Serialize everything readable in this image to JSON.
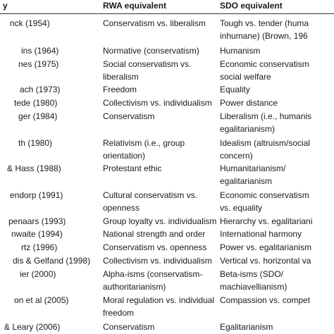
{
  "table": {
    "header": [
      "y",
      "RWA equivalent",
      "SDO equivalent"
    ],
    "rows": [
      [
        [
          "nck (1954)"
        ],
        [
          "Conservatism vs. liberalism"
        ],
        [
          "Tough vs. tender (huma",
          "inhumane) (Brown, 196"
        ]
      ],
      [
        [
          "ins (1964)"
        ],
        [
          "Normative (conservatism)"
        ],
        [
          "Humanism"
        ]
      ],
      [
        [
          "nes (1975)"
        ],
        [
          "Social conservatism vs.",
          "liberalism"
        ],
        [
          "Economic conservatism",
          "social welfare"
        ]
      ],
      [
        [
          "ach (1973)"
        ],
        [
          "Freedom"
        ],
        [
          "Equality"
        ]
      ],
      [
        [
          "tede (1980)"
        ],
        [
          "Collectivism vs. individualism"
        ],
        [
          "Power distance"
        ]
      ],
      [
        [
          "ger (1984)"
        ],
        [
          "Conservatism"
        ],
        [
          "Liberalism (i.e., humanis",
          "egalitarianism)"
        ]
      ],
      [
        [
          "th (1980)"
        ],
        [
          "Relativism (i.e., group",
          "orientation)"
        ],
        [
          "Idealism (altruism/social",
          "concern)"
        ]
      ],
      [
        [
          "& Hass (1988)"
        ],
        [
          "Protestant ethic"
        ],
        [
          "Humanitarianism/",
          "egalitarianism"
        ]
      ],
      [
        [
          "endorp (1991)"
        ],
        [
          "Cultural conservatism vs.",
          "openness"
        ],
        [
          "Economic conservatism",
          "vs. equality"
        ]
      ],
      [
        [
          "penaars (1993)"
        ],
        [
          "Group loyalty vs. individualism"
        ],
        [
          "Hierarchy vs. egalitariani"
        ]
      ],
      [
        [
          "nwaite (1994)"
        ],
        [
          "National strength  and order"
        ],
        [
          "International harmony"
        ]
      ],
      [
        [
          "rtz (1996)"
        ],
        [
          "Conservatism vs. openness"
        ],
        [
          "Power vs. egalitarianism"
        ]
      ],
      [
        [
          "dis & Gelfand (1998)"
        ],
        [
          "Collectivism vs. individualism"
        ],
        [
          "Vertical vs. horizontal va"
        ]
      ],
      [
        [
          "ier (2000)"
        ],
        [
          "Alpha-isms (conservatism-",
          "authoritarianism)"
        ],
        [
          "Beta-isms (SDO/",
          "machiavellianism)"
        ]
      ],
      [
        [
          "on et al (2005)"
        ],
        [
          "Moral regulation vs. individual",
          "freedom"
        ],
        [
          "Compassion vs. compet"
        ]
      ],
      [
        [
          "& Leary (2006)"
        ],
        [
          "Conservatism"
        ],
        [
          "Egalitarianism"
        ]
      ]
    ]
  }
}
